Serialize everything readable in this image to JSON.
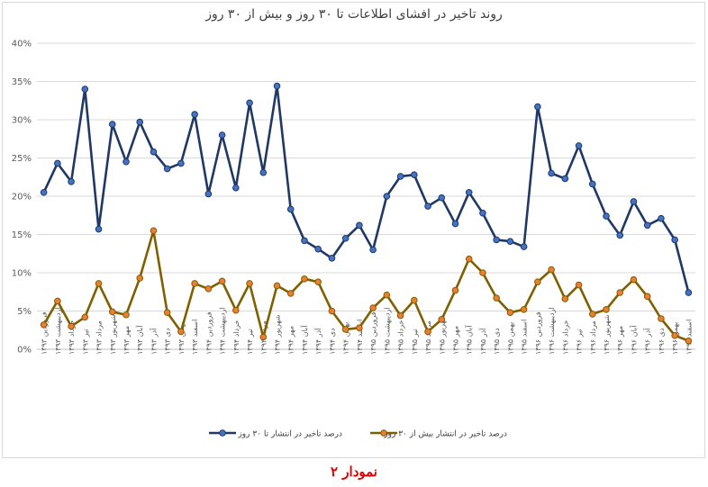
{
  "chart_data": {
    "type": "line",
    "title": "روند تاخیر در افشای اطلاعات تا ۳۰ روز و بیش از ۳۰ روز",
    "xlabel": "",
    "ylabel": "",
    "ylim": [
      0,
      40
    ],
    "yticks": [
      "0%",
      "5%",
      "10%",
      "15%",
      "20%",
      "25%",
      "30%",
      "35%",
      "40%"
    ],
    "grid": true,
    "legend_position": "bottom",
    "categories": [
      "فروردین ۱۳۹۳",
      "اردیبهشت ۱۳۹۳",
      "خرداد ۱۳۹۳",
      "تیر ۱۳۹۳",
      "مرداد ۱۳۹۳",
      "شهریور ۱۳۹۳",
      "مهر ۱۳۹۳",
      "آبان ۱۳۹۳",
      "آذر ۱۳۹۳",
      "دی ۱۳۹۳",
      "بهمن ۱۳۹۳",
      "اسفند ۱۳۹۳",
      "فروردین ۱۳۹۴",
      "اردیبهشت ۱۳۹۴",
      "خرداد ۱۳۹۴",
      "تیر ۱۳۹۴",
      "مرداد ۱۳۹۴",
      "شهریور ۱۳۹۴",
      "مهر ۱۳۹۴",
      "آبان ۱۳۹۴",
      "آذر ۱۳۹۴",
      "دی ۱۳۹۴",
      "بهمن ۱۳۹۴",
      "اسفند ۱۳۹۴",
      "فروردین ۱۳۹۵",
      "اردیبهشت ۱۳۹۵",
      "خرداد ۱۳۹۵",
      "تیر ۱۳۹۵",
      "مرداد ۱۳۹۵",
      "شهریور ۱۳۹۵",
      "مهر ۱۳۹۵",
      "آبان ۱۳۹۵",
      "آذر ۱۳۹۵",
      "دی ۱۳۹۵",
      "بهمن ۱۳۹۵",
      "اسفند ۱۳۹۵",
      "فروردین ۱۳۹۶",
      "اردیبهشت ۱۳۹۶",
      "خرداد ۱۳۹۶",
      "تیر ۱۳۹۶",
      "مرداد ۱۳۹۶",
      "شهریور ۱۳۹۶",
      "مهر ۱۳۹۶",
      "آبان ۱۳۹۶",
      "آذر ۱۳۹۶",
      "دی ۱۳۹۶",
      "بهمن ۱۳۹۶",
      "اسفند ۱۳۹۶"
    ],
    "series": [
      {
        "name": "درصد تاخیر در انتشار تا ۳۰ روز",
        "color": "#1f3864",
        "values": [
          20.5,
          24.3,
          21.9,
          34.0,
          15.7,
          29.4,
          24.5,
          29.7,
          25.8,
          23.6,
          24.3,
          30.7,
          20.3,
          28.0,
          21.1,
          32.2,
          23.1,
          34.4,
          18.3,
          14.2,
          13.1,
          11.9,
          14.5,
          16.2,
          13.0,
          20.0,
          22.6,
          22.8,
          18.7,
          19.8,
          16.4,
          20.5,
          17.8,
          14.3,
          14.1,
          13.4,
          31.7,
          23.0,
          22.3,
          26.6,
          21.6,
          17.4,
          14.9,
          19.3,
          16.2,
          17.1,
          14.3,
          7.4
        ]
      },
      {
        "name": "درصد تاخیر در انتشار بیش از ۳۰ روز",
        "color": "#7f6000",
        "marker_color": "#ed7d31",
        "values": [
          3.2,
          6.3,
          3.0,
          4.2,
          8.6,
          4.9,
          4.5,
          9.3,
          15.5,
          4.8,
          2.3,
          8.6,
          7.9,
          8.9,
          5.1,
          8.6,
          1.6,
          8.3,
          7.3,
          9.2,
          8.8,
          5.0,
          2.6,
          2.8,
          5.4,
          7.1,
          4.4,
          6.4,
          2.3,
          3.9,
          7.7,
          11.8,
          10.0,
          6.7,
          4.8,
          5.2,
          8.8,
          10.4,
          6.6,
          8.4,
          4.6,
          5.2,
          7.4,
          9.1,
          6.9,
          4.0,
          1.8,
          1.1
        ]
      }
    ]
  },
  "caption": "نمودار ۲"
}
